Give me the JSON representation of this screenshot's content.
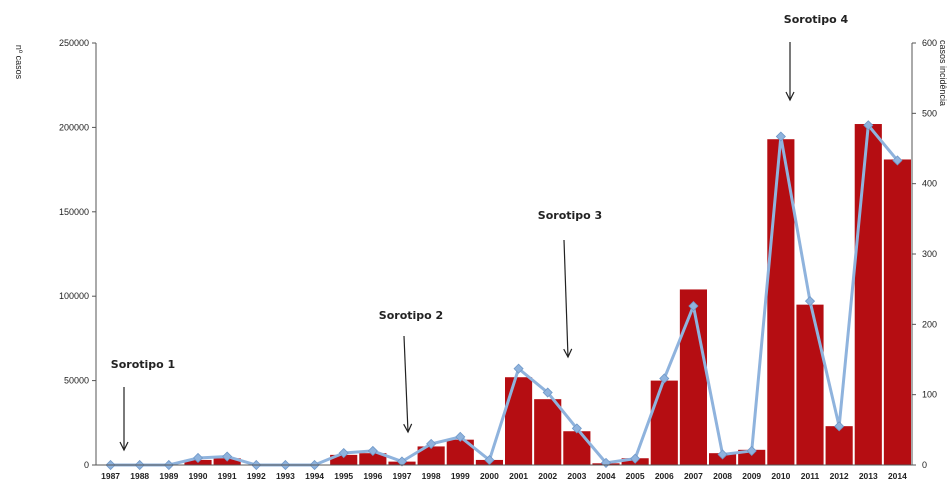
{
  "chart_data": {
    "type": "bar",
    "ylabel": "nº casos",
    "y2label": "casos incidência",
    "ylim": [
      0,
      250000
    ],
    "y2lim": [
      0,
      600
    ],
    "yticks": [
      0,
      50000,
      100000,
      150000,
      200000,
      250000
    ],
    "y2ticks": [
      0,
      100,
      200,
      300,
      400,
      500,
      600
    ],
    "categories": [
      "1987",
      "1988",
      "1989",
      "1990",
      "1991",
      "1992",
      "1993",
      "1994",
      "1995",
      "1996",
      "1997",
      "1998",
      "1999",
      "2000",
      "2001",
      "2002",
      "2003",
      "2004",
      "2005",
      "2006",
      "2007",
      "2008",
      "2009",
      "2010",
      "2011",
      "2012",
      "2013",
      "2014"
    ],
    "series": [
      {
        "axis": "left",
        "kind": "bar",
        "color": "#b50d12",
        "values": [
          0,
          0,
          0,
          3000,
          4000,
          0,
          0,
          0,
          6000,
          7000,
          2000,
          11000,
          15000,
          3000,
          52000,
          39000,
          20000,
          1000,
          4000,
          50000,
          104000,
          7000,
          9000,
          193000,
          95000,
          23000,
          202000,
          181000
        ]
      },
      {
        "axis": "right",
        "kind": "line",
        "color": "#8fb3dd",
        "values": [
          0,
          0,
          0,
          10,
          12,
          0,
          0,
          0,
          17,
          20,
          5,
          30,
          40,
          7,
          137,
          103,
          52,
          3,
          9,
          123,
          226,
          15,
          20,
          467,
          233,
          55,
          483,
          433
        ]
      }
    ],
    "annotations": [
      {
        "text": "Sorotipo 1",
        "category": "1988"
      },
      {
        "text": "Sorotipo 2",
        "category": "1997"
      },
      {
        "text": "Sorotipo 3",
        "category": "2003"
      },
      {
        "text": "Sorotipo 4",
        "category": "2011"
      }
    ]
  }
}
